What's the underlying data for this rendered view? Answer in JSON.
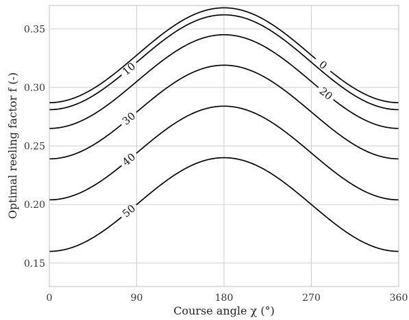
{
  "chart_data": {
    "type": "line",
    "xlabel": "Course angle χ (°)",
    "ylabel": "Optimal reeling factor f (-)",
    "xlim": [
      0,
      360
    ],
    "ylim": [
      0.13,
      0.37
    ],
    "xticks": [
      "0",
      "90",
      "180",
      "270",
      "360"
    ],
    "xtick_values": [
      0,
      90,
      180,
      270,
      360
    ],
    "yticks": [
      "0.15",
      "0.20",
      "0.25",
      "0.30",
      "0.35"
    ],
    "ytick_values": [
      0.15,
      0.2,
      0.25,
      0.3,
      0.35
    ],
    "grid": true,
    "series": [
      {
        "name": "0",
        "min": 0.287,
        "max": 0.368,
        "label_x": 282
      },
      {
        "name": "10",
        "min": 0.281,
        "max": 0.362,
        "label_x": 82
      },
      {
        "name": "20",
        "min": 0.265,
        "max": 0.345,
        "label_x": 285
      },
      {
        "name": "30",
        "min": 0.239,
        "max": 0.319,
        "label_x": 82
      },
      {
        "name": "40",
        "min": 0.204,
        "max": 0.284,
        "label_x": 82
      },
      {
        "name": "50",
        "min": 0.16,
        "max": 0.24,
        "label_x": 82
      }
    ]
  }
}
